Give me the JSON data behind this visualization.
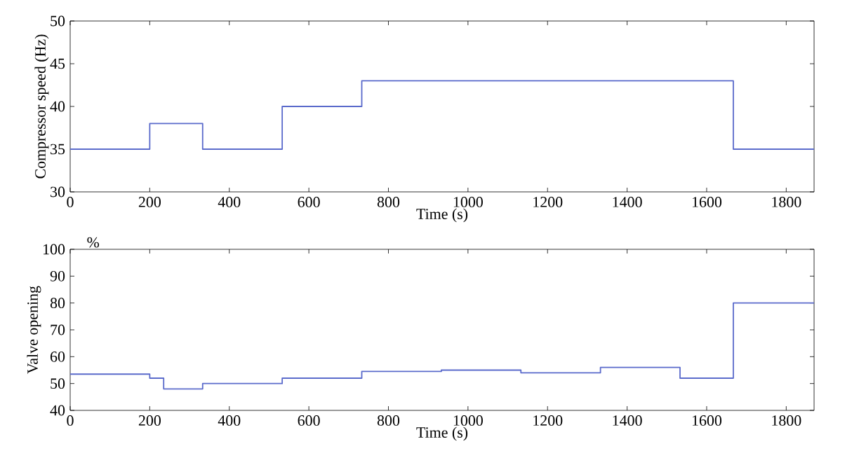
{
  "chart_data": [
    {
      "type": "step",
      "xlabel": "Time (s)",
      "ylabel": "Compressor speed (Hz)",
      "x": [
        0,
        200,
        333,
        533,
        733,
        1667,
        1870
      ],
      "series": [
        {
          "color": "#5a6acb",
          "values": [
            35,
            38,
            35,
            40,
            43,
            35,
            35
          ]
        }
      ],
      "xlim": [
        0,
        1870
      ],
      "xticks": [
        0,
        200,
        400,
        600,
        800,
        1000,
        1200,
        1400,
        1600,
        1800
      ],
      "ylim": [
        30,
        50
      ],
      "yticks": [
        30,
        35,
        40,
        45,
        50
      ],
      "grid": false,
      "marker": "none",
      "line_style": "solid"
    },
    {
      "type": "step",
      "xlabel": "Time (s)",
      "ylabel": "Valve opening",
      "annotations": [
        "%"
      ],
      "x": [
        0,
        200,
        235,
        333,
        533,
        733,
        933,
        1133,
        1333,
        1533,
        1667,
        1870
      ],
      "series": [
        {
          "color": "#5a6acb",
          "values": [
            53.5,
            52,
            48,
            50,
            52,
            54.5,
            55,
            54,
            56,
            52,
            80,
            80
          ]
        }
      ],
      "xlim": [
        0,
        1870
      ],
      "xticks": [
        0,
        200,
        400,
        600,
        800,
        1000,
        1200,
        1400,
        1600,
        1800
      ],
      "ylim": [
        40,
        100
      ],
      "yticks": [
        40,
        50,
        60,
        70,
        80,
        90,
        100
      ],
      "grid": false,
      "marker": "none",
      "line_style": "solid"
    }
  ]
}
